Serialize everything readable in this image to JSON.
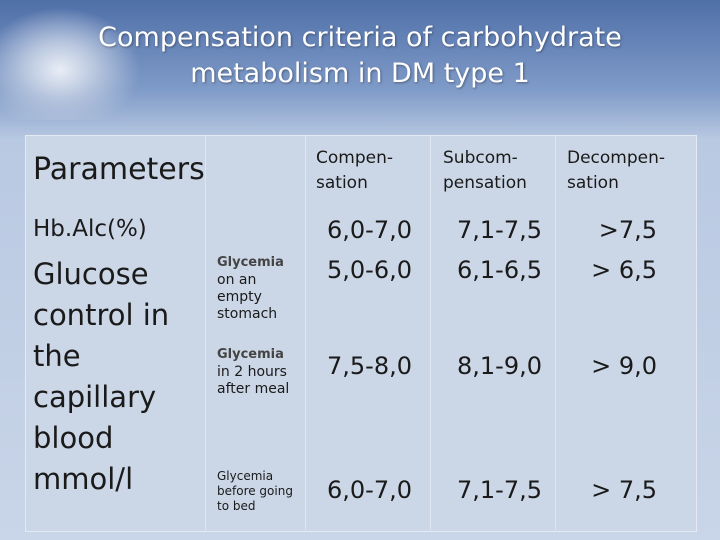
{
  "title": [
    "Compensation criteria of carbohydrate",
    "metabolism in DM type 1"
  ],
  "table": {
    "header": {
      "parameter": "Parameters",
      "columns": [
        [
          "Compen-",
          "sation"
        ],
        [
          "Subcom-",
          "pensation"
        ],
        [
          "Decompen-",
          "sation"
        ]
      ]
    },
    "hba1c": {
      "label": "Hb.Alc(%)",
      "values": [
        "6,0-7,0",
        "7,1-7,5",
        ">7,5"
      ]
    },
    "glucose": {
      "label": [
        "Glucose",
        "control in",
        "the",
        "capillary",
        "blood",
        "mmol/l"
      ],
      "rows": [
        {
          "label": [
            "Glycemia",
            "on an",
            "empty",
            "stomach"
          ],
          "values": [
            "5,0-6,0",
            "6,1-6,5",
            "> 6,5"
          ]
        },
        {
          "label": [
            "Glycemia",
            "in 2 hours",
            "after meal"
          ],
          "values": [
            "7,5-8,0",
            "8,1-9,0",
            "> 9,0"
          ]
        },
        {
          "label": [
            "Glycemia",
            "before going",
            "to bed"
          ],
          "values": [
            "6,0-7,0",
            "7,1-7,5",
            "> 7,5"
          ]
        }
      ]
    }
  }
}
